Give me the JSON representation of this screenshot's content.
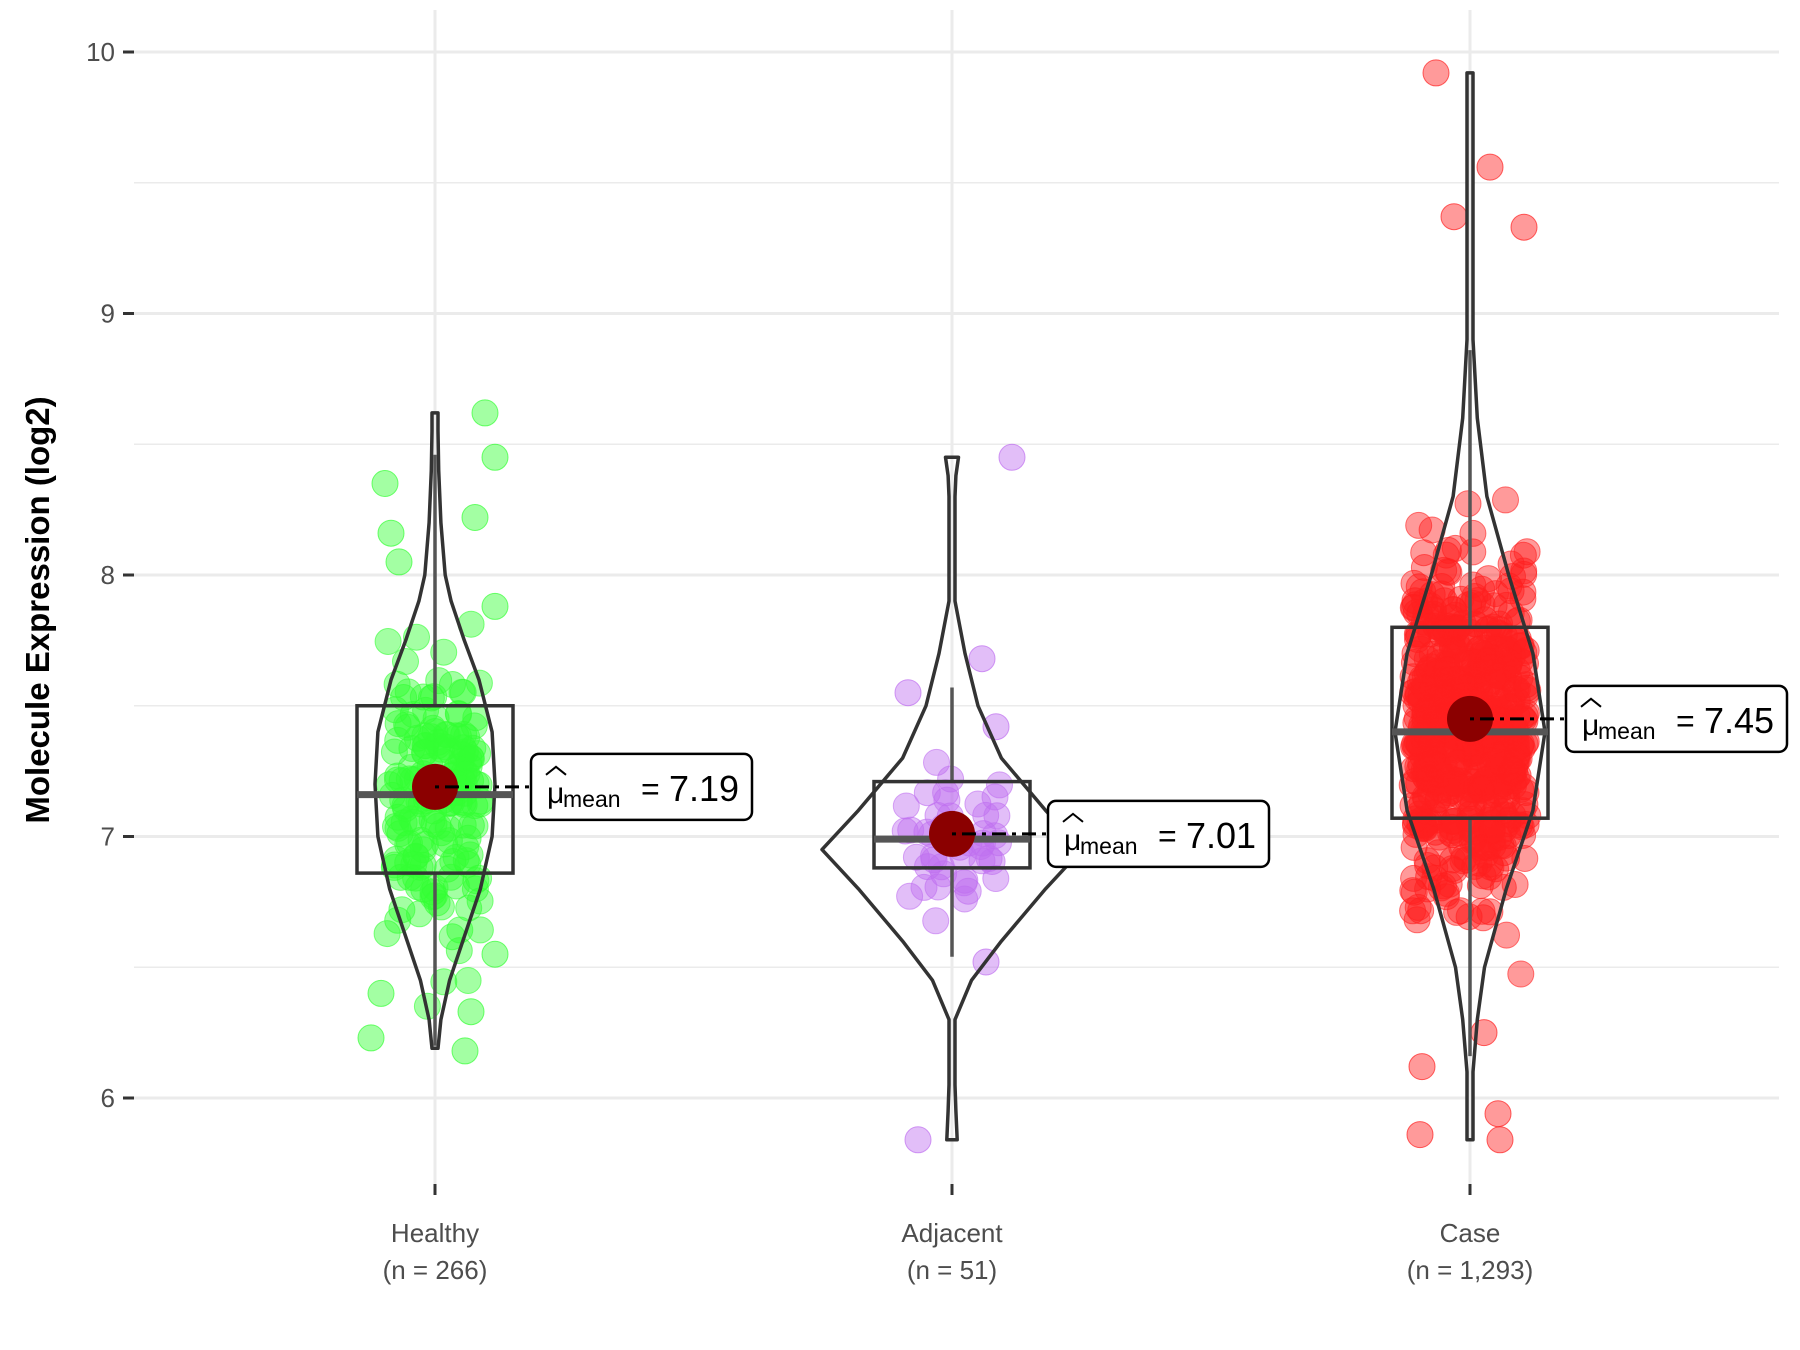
{
  "chart_data": {
    "type": "violin-box-jitter",
    "title": "",
    "xlabel": "",
    "ylabel": "Molecule Expression (log2)",
    "ylim": [
      5.62,
      10.2
    ],
    "yticks": [
      6,
      7,
      8,
      9,
      10
    ],
    "ytick_labels": [
      "6",
      "7",
      "8",
      "9",
      "10"
    ],
    "grid": true,
    "legend": "none",
    "mean_symbol": "μ",
    "mean_subscript": "mean",
    "groups": [
      {
        "name": "Healthy",
        "n_label": "(n = 266)",
        "n": 266,
        "color": "#33ff33",
        "mean": 7.19,
        "mean_label": "7.19",
        "median": 7.16,
        "q1": 6.86,
        "q3": 7.5,
        "whisker_low": 6.2,
        "whisker_high": 8.46,
        "violin_min": 6.19,
        "violin_max": 8.62,
        "density": [
          [
            6.19,
            0.02
          ],
          [
            6.3,
            0.08
          ],
          [
            6.45,
            0.2
          ],
          [
            6.6,
            0.38
          ],
          [
            6.8,
            0.62
          ],
          [
            7.0,
            0.78
          ],
          [
            7.2,
            0.82
          ],
          [
            7.4,
            0.78
          ],
          [
            7.6,
            0.6
          ],
          [
            7.75,
            0.4
          ],
          [
            7.9,
            0.22
          ],
          [
            8.0,
            0.14
          ],
          [
            8.2,
            0.08
          ],
          [
            8.4,
            0.05
          ],
          [
            8.55,
            0.03
          ],
          [
            8.62,
            0.0
          ]
        ],
        "outliers": [
          [
            6.23,
            -0.32
          ],
          [
            6.18,
            0.15
          ],
          [
            8.62,
            0.25
          ],
          [
            8.45,
            0.3
          ],
          [
            8.35,
            -0.25
          ],
          [
            8.22,
            0.2
          ],
          [
            8.16,
            -0.22
          ],
          [
            8.05,
            -0.18
          ],
          [
            7.88,
            0.3
          ],
          [
            6.55,
            0.3
          ],
          [
            6.4,
            -0.27
          ],
          [
            6.33,
            0.18
          ]
        ],
        "jitter_points": 180
      },
      {
        "name": "Adjacent",
        "n_label": "(n = 51)",
        "n": 51,
        "color": "#bf6ff0",
        "mean": 7.01,
        "mean_label": "7.01",
        "median": 6.99,
        "q1": 6.88,
        "q3": 7.21,
        "whisker_low": 6.54,
        "whisker_high": 7.57,
        "violin_min": 5.84,
        "violin_max": 8.45,
        "density": [
          [
            5.84,
            0.04
          ],
          [
            5.95,
            0.03
          ],
          [
            6.05,
            0.01
          ],
          [
            6.3,
            0.02
          ],
          [
            6.45,
            0.15
          ],
          [
            6.6,
            0.38
          ],
          [
            6.8,
            0.72
          ],
          [
            6.95,
            1.0
          ],
          [
            7.1,
            0.72
          ],
          [
            7.3,
            0.38
          ],
          [
            7.5,
            0.2
          ],
          [
            7.7,
            0.1
          ],
          [
            7.9,
            0.02
          ],
          [
            8.2,
            0.01
          ],
          [
            8.3,
            0.01
          ],
          [
            8.38,
            0.03
          ],
          [
            8.45,
            0.05
          ]
        ],
        "outliers": [
          [
            8.45,
            0.3
          ],
          [
            7.68,
            0.15
          ],
          [
            5.84,
            -0.17
          ],
          [
            7.55,
            -0.22
          ],
          [
            7.42,
            0.22
          ],
          [
            6.52,
            0.17
          ]
        ],
        "jitter_points": 45
      },
      {
        "name": "Case",
        "n_label": "(n = 1,293)",
        "n": 1293,
        "color": "#ff2020",
        "mean": 7.45,
        "mean_label": "7.45",
        "median": 7.4,
        "q1": 7.07,
        "q3": 7.8,
        "whisker_low": 6.16,
        "whisker_high": 8.86,
        "violin_min": 5.84,
        "violin_max": 9.92,
        "density": [
          [
            5.84,
            0.0
          ],
          [
            6.1,
            0.02
          ],
          [
            6.3,
            0.06
          ],
          [
            6.5,
            0.12
          ],
          [
            6.8,
            0.3
          ],
          [
            7.1,
            0.52
          ],
          [
            7.4,
            0.62
          ],
          [
            7.7,
            0.52
          ],
          [
            8.0,
            0.32
          ],
          [
            8.3,
            0.14
          ],
          [
            8.6,
            0.06
          ],
          [
            8.9,
            0.02
          ],
          [
            9.2,
            0.01
          ],
          [
            9.6,
            0.005
          ],
          [
            9.92,
            0.0
          ]
        ],
        "outliers": [
          [
            9.92,
            -0.17
          ],
          [
            9.56,
            0.1
          ],
          [
            9.37,
            -0.08
          ],
          [
            9.33,
            0.27
          ],
          [
            5.86,
            -0.25
          ],
          [
            5.84,
            0.15
          ],
          [
            5.94,
            0.14
          ],
          [
            6.12,
            -0.24
          ],
          [
            6.25,
            0.07
          ]
        ],
        "jitter_points": 650
      }
    ]
  }
}
